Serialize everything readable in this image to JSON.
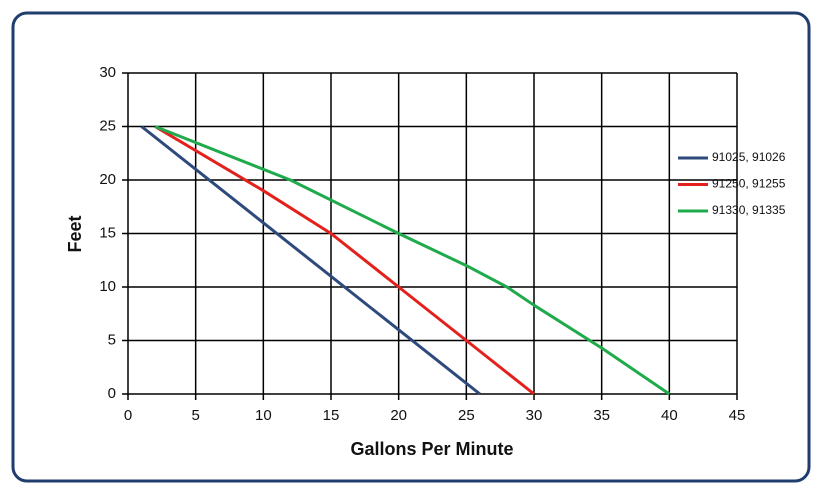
{
  "chart_data": {
    "type": "line",
    "xlabel": "Gallons Per Minute",
    "ylabel": "Feet",
    "xlim": [
      0,
      45
    ],
    "xticks": [
      0,
      5,
      10,
      15,
      20,
      25,
      30,
      35,
      40,
      45
    ],
    "ylim": [
      0,
      30
    ],
    "yticks": [
      0,
      5,
      10,
      15,
      20,
      25,
      30
    ],
    "grid": true,
    "legend": "right",
    "series": [
      {
        "name": "91025, 91026",
        "color": "#2e4a7d",
        "x": [
          1,
          26
        ],
        "values": [
          25,
          0
        ]
      },
      {
        "name": "91250, 91255",
        "color": "#e3211c",
        "x": [
          2,
          10,
          15,
          20,
          25,
          30
        ],
        "values": [
          25,
          19,
          15,
          10,
          5,
          0
        ]
      },
      {
        "name": "91330, 91335",
        "color": "#1faa4b",
        "x": [
          2,
          12,
          20,
          25,
          28,
          30,
          35,
          40
        ],
        "values": [
          25,
          20,
          15,
          12,
          10,
          8.3,
          4.3,
          0
        ]
      }
    ]
  }
}
